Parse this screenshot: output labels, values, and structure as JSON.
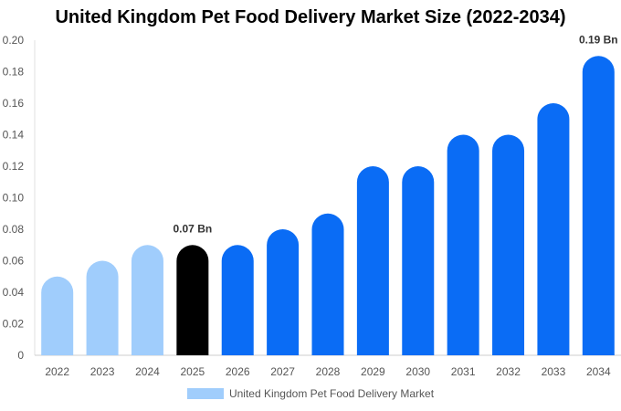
{
  "chart_data": {
    "type": "bar",
    "title": "United Kingdom Pet Food Delivery Market Size (2022-2034)",
    "categories": [
      "2022",
      "2023",
      "2024",
      "2025",
      "2026",
      "2027",
      "2028",
      "2029",
      "2030",
      "2031",
      "2032",
      "2033",
      "2034"
    ],
    "series": [
      {
        "name": "United Kingdom Pet Food Delivery Market",
        "values": [
          0.05,
          0.06,
          0.07,
          0.07,
          0.07,
          0.08,
          0.09,
          0.12,
          0.12,
          0.14,
          0.14,
          0.16,
          0.19
        ]
      }
    ],
    "bar_colors": [
      "#a0cdfc",
      "#a0cdfc",
      "#a0cdfc",
      "#000000",
      "#0a6cf5",
      "#0a6cf5",
      "#0a6cf5",
      "#0a6cf5",
      "#0a6cf5",
      "#0a6cf5",
      "#0a6cf5",
      "#0a6cf5",
      "#0a6cf5"
    ],
    "data_labels": [
      {
        "category": "2025",
        "text": "0.07 Bn"
      },
      {
        "category": "2034",
        "text": "0.19 Bn"
      }
    ],
    "y_ticks": [
      "0",
      "0.02",
      "0.04",
      "0.06",
      "0.08",
      "0.10",
      "0.12",
      "0.14",
      "0.16",
      "0.18",
      "0.20"
    ],
    "ylim": [
      0,
      0.2
    ],
    "grid": false,
    "legend_position": "bottom-center",
    "xlabel": "",
    "ylabel": ""
  }
}
